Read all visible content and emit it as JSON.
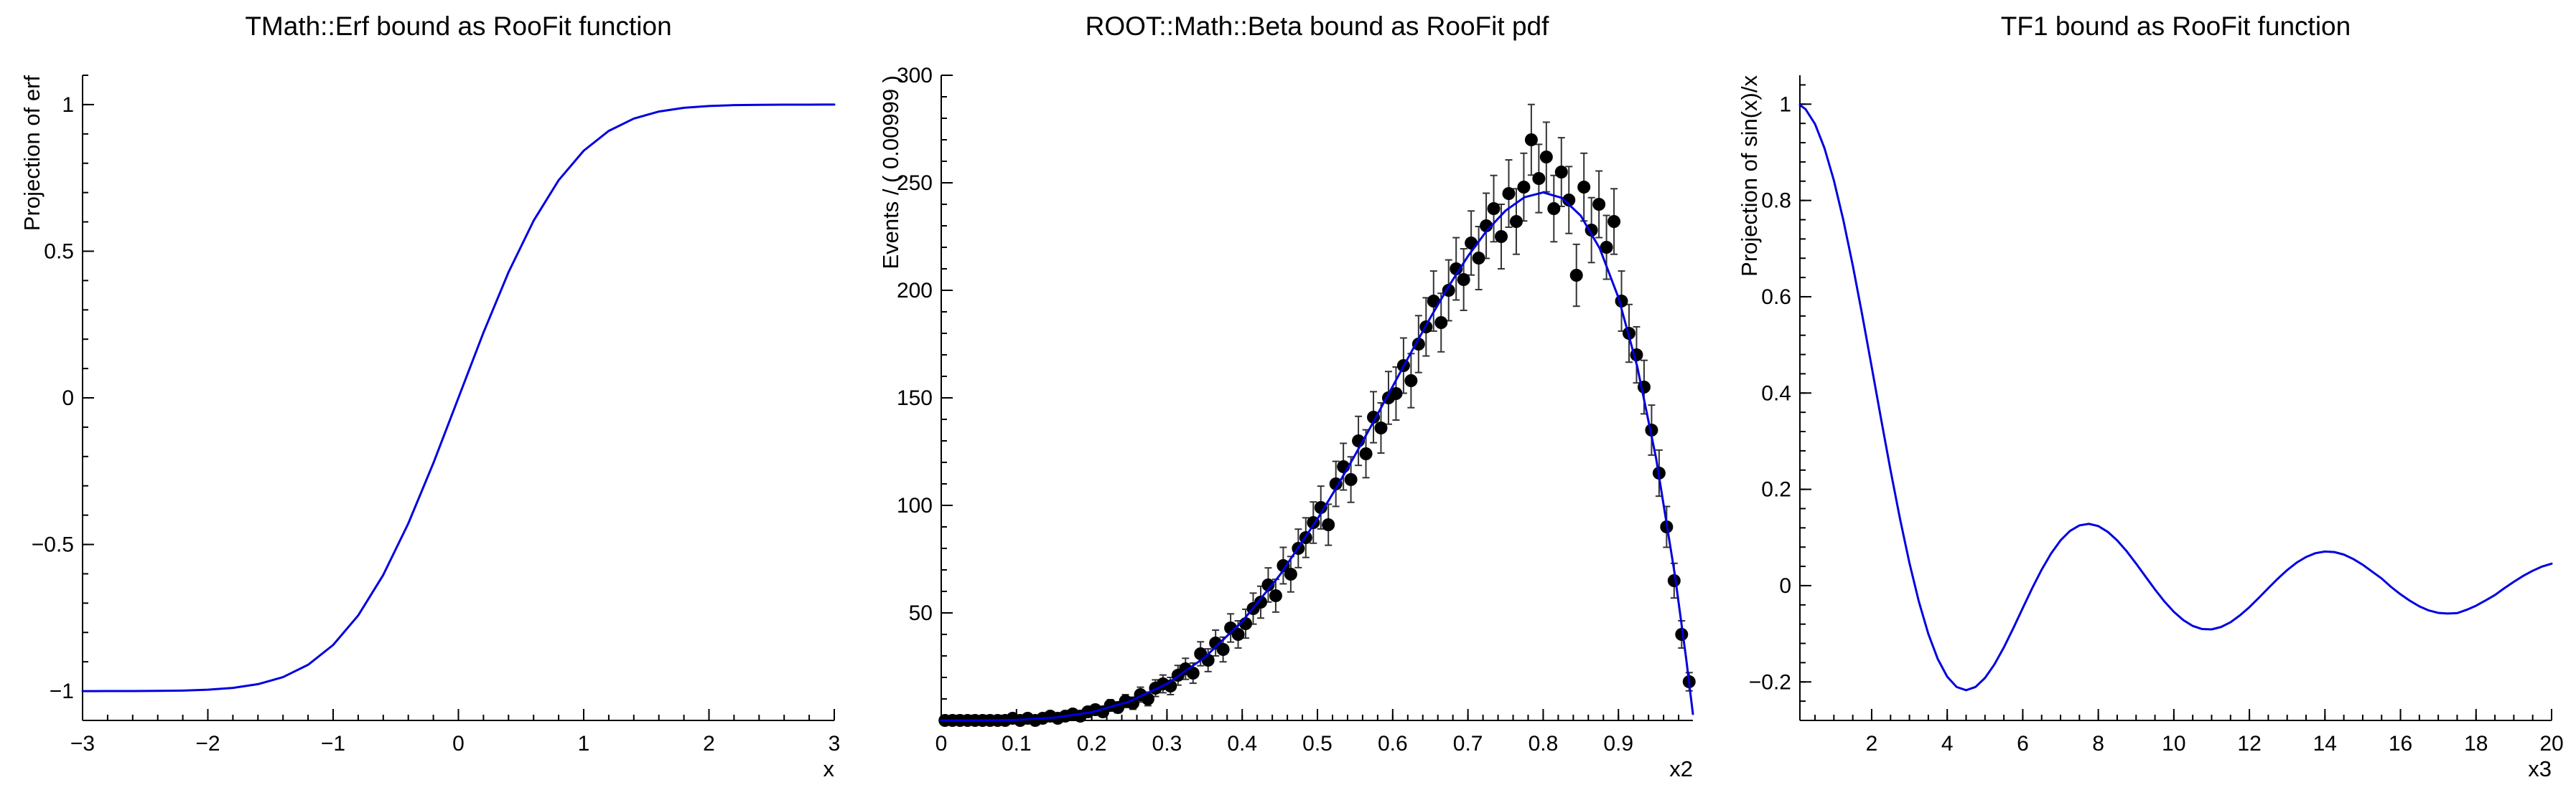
{
  "canvas": {
    "background": "#ffffff"
  },
  "chart_data": [
    {
      "type": "line",
      "title": "TMath::Erf bound as RooFit function",
      "xlabel": "x",
      "ylabel": "Projection of erf",
      "xlim": [
        -3,
        3
      ],
      "ylim": [
        -1.1,
        1.1
      ],
      "xticks": [
        -3,
        -2,
        -1,
        0,
        1,
        2,
        3
      ],
      "xtick_labels": [
        "−3",
        "−2",
        "−1",
        "0",
        "1",
        "2",
        "3"
      ],
      "x_minor": 0.2,
      "yticks": [
        -1,
        -0.5,
        0,
        0.5,
        1
      ],
      "ytick_labels": [
        "−1",
        "−0.5",
        "0",
        "0.5",
        "1"
      ],
      "y_minor": 0.1,
      "line_color": "#0000e0",
      "x": [
        -3,
        -2.8,
        -2.6,
        -2.4,
        -2.2,
        -2,
        -1.8,
        -1.6,
        -1.4,
        -1.2,
        -1,
        -0.8,
        -0.6,
        -0.4,
        -0.2,
        0,
        0.2,
        0.4,
        0.6,
        0.8,
        1,
        1.2,
        1.4,
        1.6,
        1.8,
        2,
        2.2,
        2.4,
        2.6,
        2.8,
        3
      ],
      "y": [
        -0.99998,
        -0.99992,
        -0.99976,
        -0.99931,
        -0.99814,
        -0.99532,
        -0.98909,
        -0.97635,
        -0.95229,
        -0.91031,
        -0.8427,
        -0.7421,
        -0.60386,
        -0.42839,
        -0.2227,
        0,
        0.2227,
        0.42839,
        0.60386,
        0.7421,
        0.8427,
        0.91031,
        0.95229,
        0.97635,
        0.98909,
        0.99532,
        0.99814,
        0.99931,
        0.99976,
        0.99992,
        0.99998
      ]
    },
    {
      "type": "scatter",
      "title": "ROOT::Math::Beta bound as RooFit pdf",
      "xlabel": "x2",
      "ylabel": "Events / ( 0.00999 )",
      "xlim": [
        0,
        0.999
      ],
      "ylim": [
        0,
        300
      ],
      "xticks": [
        0,
        0.1,
        0.2,
        0.3,
        0.4,
        0.5,
        0.6,
        0.7,
        0.8,
        0.9
      ],
      "xtick_labels": [
        "0",
        "0.1",
        "0.2",
        "0.3",
        "0.4",
        "0.5",
        "0.6",
        "0.7",
        "0.8",
        "0.9"
      ],
      "x_minor": 0.02,
      "yticks": [
        50,
        100,
        150,
        200,
        250,
        300
      ],
      "ytick_labels": [
        "50",
        "100",
        "150",
        "200",
        "250",
        "300"
      ],
      "y_minor": 10,
      "marker_color": "#000000",
      "error_color": "#333333",
      "x_start": 0,
      "bin_width": 0.00999,
      "counts": [
        0,
        0,
        0,
        0,
        0,
        0,
        0,
        0,
        0,
        1,
        0,
        1,
        0,
        1,
        2,
        1,
        2,
        3,
        2,
        4,
        5,
        4,
        7,
        6,
        9,
        8,
        12,
        10,
        15,
        17,
        16,
        21,
        24,
        22,
        31,
        28,
        36,
        33,
        43,
        40,
        45,
        52,
        55,
        63,
        58,
        72,
        68,
        80,
        85,
        92,
        99,
        91,
        110,
        118,
        112,
        130,
        124,
        141,
        136,
        150,
        152,
        165,
        158,
        175,
        183,
        195,
        185,
        200,
        210,
        205,
        222,
        215,
        230,
        238,
        225,
        245,
        232,
        248,
        270,
        252,
        262,
        238,
        255,
        242,
        207,
        248,
        228,
        240,
        220,
        232,
        195,
        180,
        170,
        155,
        135,
        115,
        90,
        65,
        40,
        18
      ],
      "fit_curve": {
        "color": "#0000e0",
        "x": [
          0,
          0.05,
          0.1,
          0.15,
          0.2,
          0.25,
          0.3,
          0.35,
          0.4,
          0.45,
          0.5,
          0.525,
          0.55,
          0.575,
          0.6,
          0.625,
          0.65,
          0.675,
          0.7,
          0.725,
          0.75,
          0.775,
          0.8,
          0.825,
          0.85,
          0.875,
          0.9,
          0.925,
          0.95,
          0.975,
          0.99,
          0.999
        ],
        "y": [
          0,
          0.02,
          0.27,
          1.29,
          3.84,
          8.78,
          16.99,
          29.23,
          46.03,
          67.59,
          93.66,
          108.15,
          123.41,
          139.23,
          155.36,
          171.49,
          187.24,
          202.2,
          215.87,
          227.71,
          237.07,
          243.26,
          245.51,
          242.96,
          234.67,
          219.6,
          196.63,
          164.56,
          122.05,
          67.71,
          28.79,
          2.99
        ]
      }
    },
    {
      "type": "line",
      "title": "TF1 bound as RooFit function",
      "xlabel": "x3",
      "ylabel": "Projection of sin(x)/x",
      "xlim": [
        0.1,
        20
      ],
      "ylim": [
        -0.28,
        1.06
      ],
      "xticks": [
        2,
        4,
        6,
        8,
        10,
        12,
        14,
        16,
        18,
        20
      ],
      "xtick_labels": [
        "2",
        "4",
        "6",
        "8",
        "10",
        "12",
        "14",
        "16",
        "18",
        "20"
      ],
      "x_minor": 0.5,
      "yticks": [
        -0.2,
        0,
        0.2,
        0.4,
        0.6,
        0.8,
        1
      ],
      "ytick_labels": [
        "−0.2",
        "0",
        "0.2",
        "0.4",
        "0.6",
        "0.8",
        "1"
      ],
      "y_minor": 0.04,
      "line_color": "#0000e0",
      "x": [
        0.1,
        0.25,
        0.5,
        0.75,
        1,
        1.25,
        1.5,
        1.75,
        2,
        2.25,
        2.5,
        2.75,
        3,
        3.25,
        3.5,
        3.75,
        4,
        4.25,
        4.5,
        4.75,
        5,
        5.25,
        5.5,
        5.75,
        6,
        6.25,
        6.5,
        6.75,
        7,
        7.25,
        7.5,
        7.75,
        8,
        8.25,
        8.5,
        8.75,
        9,
        9.25,
        9.5,
        9.75,
        10,
        10.25,
        10.5,
        10.75,
        11,
        11.25,
        11.5,
        11.75,
        12,
        12.25,
        12.5,
        12.75,
        13,
        13.25,
        13.5,
        13.75,
        14,
        14.25,
        14.5,
        14.75,
        15,
        15.25,
        15.5,
        15.75,
        16,
        16.25,
        16.5,
        16.75,
        17,
        17.25,
        17.5,
        17.75,
        18,
        18.25,
        18.5,
        18.75,
        19,
        19.25,
        19.5,
        19.75,
        20
      ],
      "y": [
        0.9983,
        0.9896,
        0.9589,
        0.9088,
        0.8415,
        0.7592,
        0.665,
        0.5622,
        0.4546,
        0.3458,
        0.2394,
        0.1388,
        0.047,
        -0.0333,
        -0.1002,
        -0.1524,
        -0.1892,
        -0.2106,
        -0.2172,
        -0.2105,
        -0.1918,
        -0.1636,
        -0.1283,
        -0.0884,
        -0.0466,
        -0.0053,
        0.0331,
        0.0667,
        0.0939,
        0.1135,
        0.1251,
        0.1283,
        0.1237,
        0.1117,
        0.0939,
        0.0715,
        0.0458,
        0.0188,
        -0.0079,
        -0.0329,
        -0.0544,
        -0.0716,
        -0.0838,
        -0.0902,
        -0.0909,
        -0.0859,
        -0.0761,
        -0.0617,
        -0.0447,
        -0.0253,
        -0.0053,
        0.0143,
        0.0323,
        0.0477,
        0.0595,
        0.0674,
        0.0708,
        0.0697,
        0.0645,
        0.0553,
        0.0434,
        0.029,
        0.0149,
        -0.0027,
        -0.018,
        -0.0315,
        -0.0431,
        -0.0516,
        -0.0566,
        -0.058,
        -0.0571,
        -0.0503,
        -0.0417,
        -0.0309,
        -0.0195,
        -0.0053,
        0.0079,
        0.0203,
        0.0309,
        0.0397,
        0.0456
      ]
    }
  ]
}
